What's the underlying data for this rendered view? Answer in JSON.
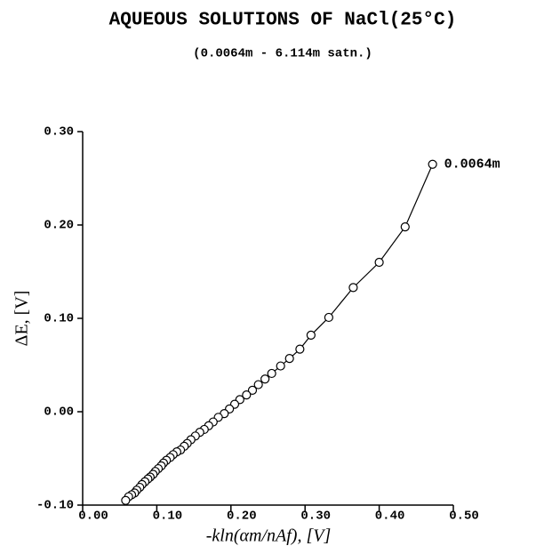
{
  "chart_data": {
    "type": "scatter",
    "title": "AQUEOUS SOLUTIONS OF NaCl(25°C)",
    "subtitle": "(0.0064m - 6.114m satn.)",
    "x_label": "-kln(αm/nAf), [V]",
    "y_label": "ΔE, [V]",
    "annotation": "0.0064m",
    "xlim": [
      0,
      0.5
    ],
    "ylim": [
      -0.1,
      0.3
    ],
    "xticks": [
      {
        "value": 0,
        "label": "0.00"
      },
      {
        "value": 0.1,
        "label": "0.10"
      },
      {
        "value": 0.2,
        "label": "0.20"
      },
      {
        "value": 0.3,
        "label": "0.30"
      },
      {
        "value": 0.4,
        "label": "0.40"
      },
      {
        "value": 0.5,
        "label": "0.50"
      }
    ],
    "yticks": [
      {
        "value": -0.1,
        "label": "-0.10"
      },
      {
        "value": 0,
        "label": "0.00"
      },
      {
        "value": 0.1,
        "label": "0.10"
      },
      {
        "value": 0.2,
        "label": "0.20"
      },
      {
        "value": 0.3,
        "label": "0.30"
      }
    ],
    "color": "#000000",
    "x": [
      0.472,
      0.435,
      0.4,
      0.365,
      0.332,
      0.308,
      0.293,
      0.279,
      0.267,
      0.255,
      0.246,
      0.237,
      0.229,
      0.221,
      0.212,
      0.205,
      0.198,
      0.191,
      0.183,
      0.176,
      0.17,
      0.164,
      0.158,
      0.152,
      0.146,
      0.141,
      0.137,
      0.132,
      0.127,
      0.122,
      0.118,
      0.113,
      0.109,
      0.106,
      0.102,
      0.098,
      0.095,
      0.091,
      0.088,
      0.084,
      0.08,
      0.077,
      0.073,
      0.07,
      0.066,
      0.062,
      0.058
    ],
    "values": [
      0.265,
      0.198,
      0.16,
      0.133,
      0.101,
      0.082,
      0.067,
      0.057,
      0.049,
      0.041,
      0.035,
      0.029,
      0.023,
      0.018,
      0.013,
      0.008,
      0.003,
      -0.002,
      -0.006,
      -0.011,
      -0.015,
      -0.019,
      -0.022,
      -0.026,
      -0.03,
      -0.034,
      -0.037,
      -0.041,
      -0.043,
      -0.046,
      -0.049,
      -0.052,
      -0.055,
      -0.058,
      -0.061,
      -0.064,
      -0.067,
      -0.07,
      -0.072,
      -0.075,
      -0.078,
      -0.081,
      -0.084,
      -0.087,
      -0.089,
      -0.091,
      -0.095
    ]
  }
}
